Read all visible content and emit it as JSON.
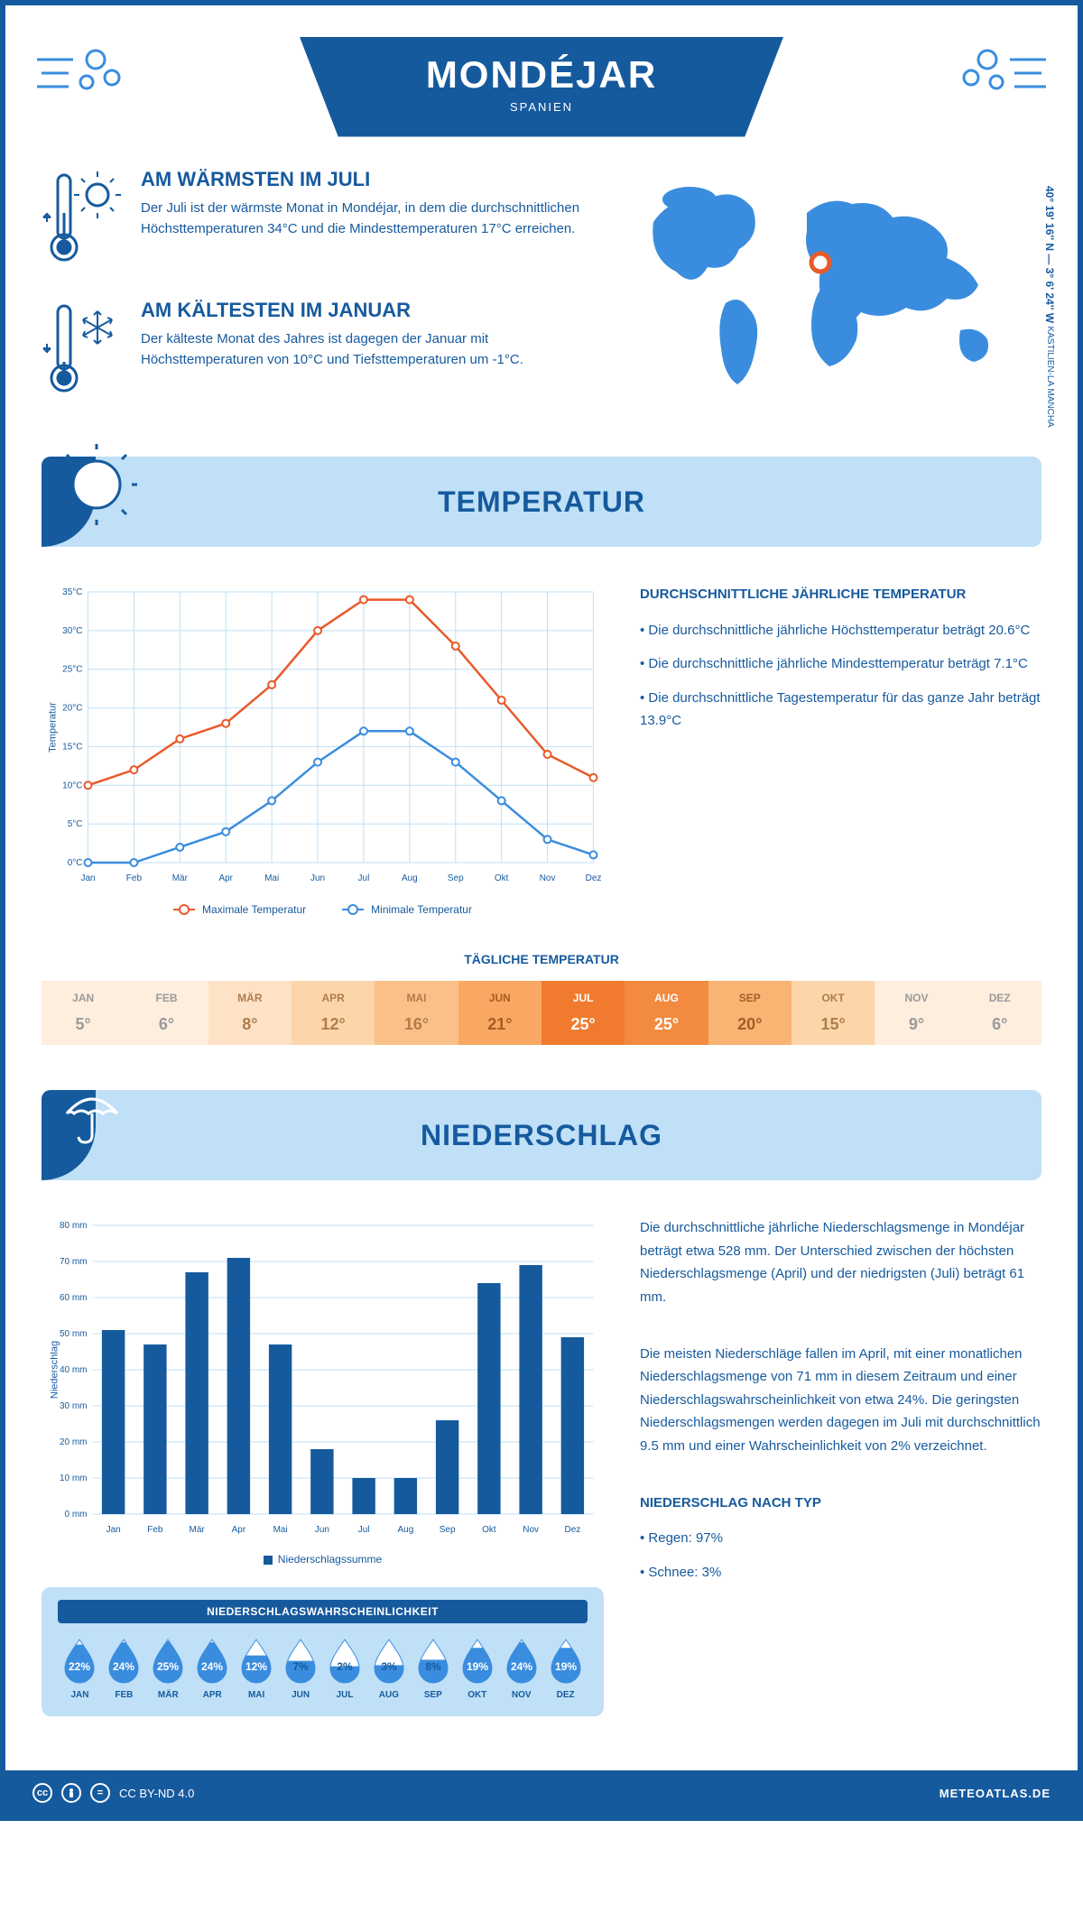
{
  "header": {
    "title": "MONDÉJAR",
    "subtitle": "SPANIEN"
  },
  "coords": {
    "text": "40° 19' 16'' N — 3° 6' 24'' W",
    "region": "KASTILIEN-LA MANCHA"
  },
  "facts": {
    "warm": {
      "title": "AM WÄRMSTEN IM JULI",
      "text": "Der Juli ist der wärmste Monat in Mondéjar, in dem die durchschnittlichen Höchsttemperaturen 34°C und die Mindesttemperaturen 17°C erreichen."
    },
    "cold": {
      "title": "AM KÄLTESTEN IM JANUAR",
      "text": "Der kälteste Monat des Jahres ist dagegen der Januar mit Höchsttemperaturen von 10°C und Tiefsttemperaturen um -1°C."
    }
  },
  "sections": {
    "temp_title": "TEMPERATUR",
    "precip_title": "NIEDERSCHLAG"
  },
  "months": [
    "Jan",
    "Feb",
    "Mär",
    "Apr",
    "Mai",
    "Jun",
    "Jul",
    "Aug",
    "Sep",
    "Okt",
    "Nov",
    "Dez"
  ],
  "months_upper": [
    "JAN",
    "FEB",
    "MÄR",
    "APR",
    "MAI",
    "JUN",
    "JUL",
    "AUG",
    "SEP",
    "OKT",
    "NOV",
    "DEZ"
  ],
  "temp_chart": {
    "type": "line",
    "y_axis_title": "Temperatur",
    "y_min": 0,
    "y_max": 35,
    "y_step": 5,
    "y_suffix": "°C",
    "max_series": {
      "label": "Maximale Temperatur",
      "color": "#e85a2a",
      "values": [
        10,
        12,
        16,
        18,
        23,
        30,
        34,
        34,
        28,
        21,
        14,
        11
      ]
    },
    "min_series": {
      "label": "Minimale Temperatur",
      "color": "#3a8dde",
      "values": [
        0,
        0,
        2,
        4,
        8,
        13,
        17,
        17,
        13,
        8,
        3,
        1
      ]
    },
    "grid_color": "#bfe0f7",
    "marker": "circle"
  },
  "temp_side": {
    "title": "DURCHSCHNITTLICHE JÄHRLICHE TEMPERATUR",
    "b1": "• Die durchschnittliche jährliche Höchsttemperatur beträgt 20.6°C",
    "b2": "• Die durchschnittliche jährliche Mindesttemperatur beträgt 7.1°C",
    "b3": "• Die durchschnittliche Tagestemperatur für das ganze Jahr beträgt 13.9°C"
  },
  "daily": {
    "title": "TÄGLICHE TEMPERATUR",
    "values": [
      "5°",
      "6°",
      "8°",
      "12°",
      "16°",
      "21°",
      "25°",
      "25°",
      "20°",
      "15°",
      "9°",
      "6°"
    ],
    "bg_colors": [
      "#fdeedd",
      "#fdeedd",
      "#fde2c6",
      "#fcd5ab",
      "#fbc088",
      "#f8a862",
      "#f07b2e",
      "#f28b3f",
      "#f9b373",
      "#fcd5ab",
      "#fdeedd",
      "#fdeedd"
    ],
    "text_colors": [
      "#9a9a9a",
      "#9a9a9a",
      "#b07d4a",
      "#b07d4a",
      "#b07d4a",
      "#a85c23",
      "#ffffff",
      "#ffffff",
      "#a85c23",
      "#b07d4a",
      "#9a9a9a",
      "#9a9a9a"
    ]
  },
  "precip_chart": {
    "type": "bar",
    "y_axis_title": "Niederschlag",
    "y_min": 0,
    "y_max": 80,
    "y_step": 10,
    "y_suffix": " mm",
    "color": "#165a9e",
    "values": [
      51,
      47,
      67,
      71,
      47,
      18,
      10,
      10,
      26,
      64,
      69,
      49
    ],
    "legend": "Niederschlagssumme",
    "grid_color": "#bfe0f7"
  },
  "precip_side": {
    "p1": "Die durchschnittliche jährliche Niederschlagsmenge in Mondéjar beträgt etwa 528 mm. Der Unterschied zwischen der höchsten Niederschlagsmenge (April) und der niedrigsten (Juli) beträgt 61 mm.",
    "p2": "Die meisten Niederschläge fallen im April, mit einer monatlichen Niederschlagsmenge von 71 mm in diesem Zeitraum und einer Niederschlagswahrscheinlichkeit von etwa 24%. Die geringsten Niederschlagsmengen werden dagegen im Juli mit durchschnittlich 9.5 mm und einer Wahrscheinlichkeit von 2% verzeichnet.",
    "type_title": "NIEDERSCHLAG NACH TYP",
    "type1": "• Regen: 97%",
    "type2": "• Schnee: 3%"
  },
  "prob": {
    "title": "NIEDERSCHLAGSWAHRSCHEINLICHKEIT",
    "values": [
      "22%",
      "24%",
      "25%",
      "24%",
      "12%",
      "7%",
      "2%",
      "3%",
      "8%",
      "19%",
      "24%",
      "19%"
    ],
    "intensity": [
      0.88,
      0.96,
      1.0,
      0.96,
      0.48,
      0.28,
      0.08,
      0.12,
      0.32,
      0.76,
      0.96,
      0.76
    ],
    "drop_fill": "#3a8dde",
    "drop_empty": "#ffffff",
    "label_light": "#ffffff",
    "label_dark": "#165a9e"
  },
  "footer": {
    "license": "CC BY-ND 4.0",
    "site": "METEOATLAS.DE"
  },
  "colors": {
    "primary": "#165a9e",
    "light": "#bfe0f7",
    "accent_blue": "#3a8dde"
  }
}
